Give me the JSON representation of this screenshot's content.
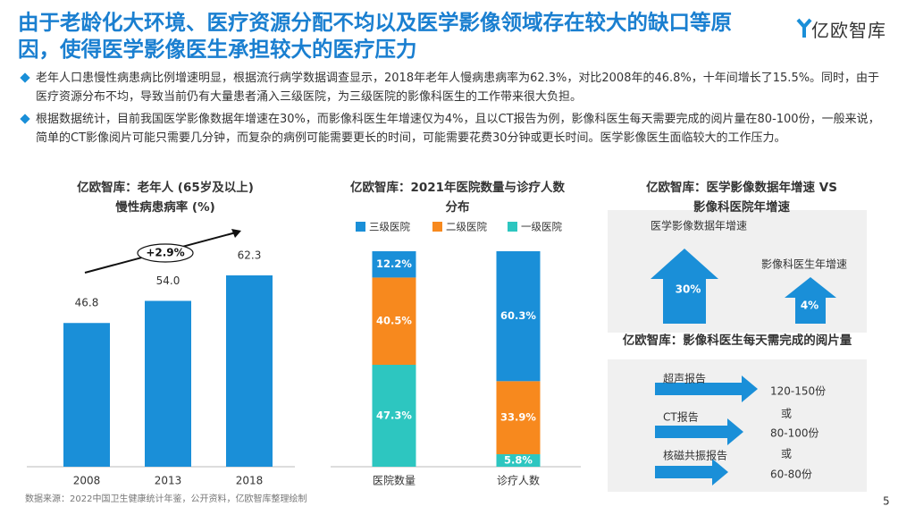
{
  "header": {
    "title": "由于老龄化大环境、医疗资源分配不均以及医学影像领域存在较大的缺口等原因，使得医学影像医生承担较大的医疗压力",
    "logo": "亿欧智库"
  },
  "bullets": [
    "老年人口患慢性病患病比例增速明显，根据流行病学数据调查显示，2018年老年人慢病患病率为62.3%，对比2008年的46.8%，十年间增长了15.5%。同时，由于医疗资源分布不均，导致当前仍有大量患者涌入三级医院，为三级医院的影像科医生的工作带来很大负担。",
    "根据数据统计，目前我国医学影像数据年增速在30%，而影像科医生年增速仅为4%，且以CT报告为例，影像科医生每天需要完成的阅片量在80-100份，一般来说，简单的CT影像阅片可能只需要几分钟，而复杂的病例可能需要更长的时间，可能需要花费30分钟或更长时间。医学影像医生面临较大的工作压力。"
  ],
  "chart_data": [
    {
      "type": "bar",
      "title": [
        "亿欧智库：老年人 (65岁及以上)",
        "慢性病患病率 (%)"
      ],
      "categories": [
        "2008",
        "2013",
        "2018"
      ],
      "values": [
        46.8,
        54.0,
        62.3
      ],
      "value_labels": [
        "46.8",
        "54.0",
        "62.3"
      ],
      "color": "#1a8fd8",
      "annotation": "+2.9%"
    },
    {
      "type": "stacked",
      "title": [
        "亿欧智库：2021年医院数量与诊疗人数",
        "分布"
      ],
      "categories": [
        "医院数量",
        "诊疗人数"
      ],
      "series": [
        {
          "name": "三级医院",
          "color": "#1a8fd8",
          "values": [
            12.2,
            60.3
          ],
          "value_labels": [
            "12.2%",
            "60.3%"
          ]
        },
        {
          "name": "二级医院",
          "color": "#f7891e",
          "values": [
            40.5,
            33.9
          ],
          "value_labels": [
            "40.5%",
            "33.9%"
          ]
        },
        {
          "name": "一级医院",
          "color": "#2dc6c0",
          "values": [
            47.3,
            5.8
          ],
          "value_labels": [
            "47.3%",
            "5.8%"
          ]
        }
      ]
    }
  ],
  "growth_panel": {
    "title": [
      "亿欧智库：医学影像数据年增速 VS",
      "影像科医院年增速"
    ],
    "items": [
      {
        "label": "医学影像数据年增速",
        "value": "30%"
      },
      {
        "label": "影像科医生年增速",
        "value": "4%"
      }
    ]
  },
  "reading_panel": {
    "title": "亿欧智库：影像科医生每天需完成的阅片量",
    "items": [
      {
        "label": "超声报告",
        "value": "120-150份"
      },
      {
        "label": "CT报告",
        "value": "80-100份"
      },
      {
        "label": "核磁共振报告",
        "value": "60-80份"
      }
    ],
    "separators": [
      "或",
      "或"
    ]
  },
  "source": "数据来源：2022中国卫生健康统计年鉴，公开资料，亿欧智库整理绘制",
  "page_number": "5"
}
